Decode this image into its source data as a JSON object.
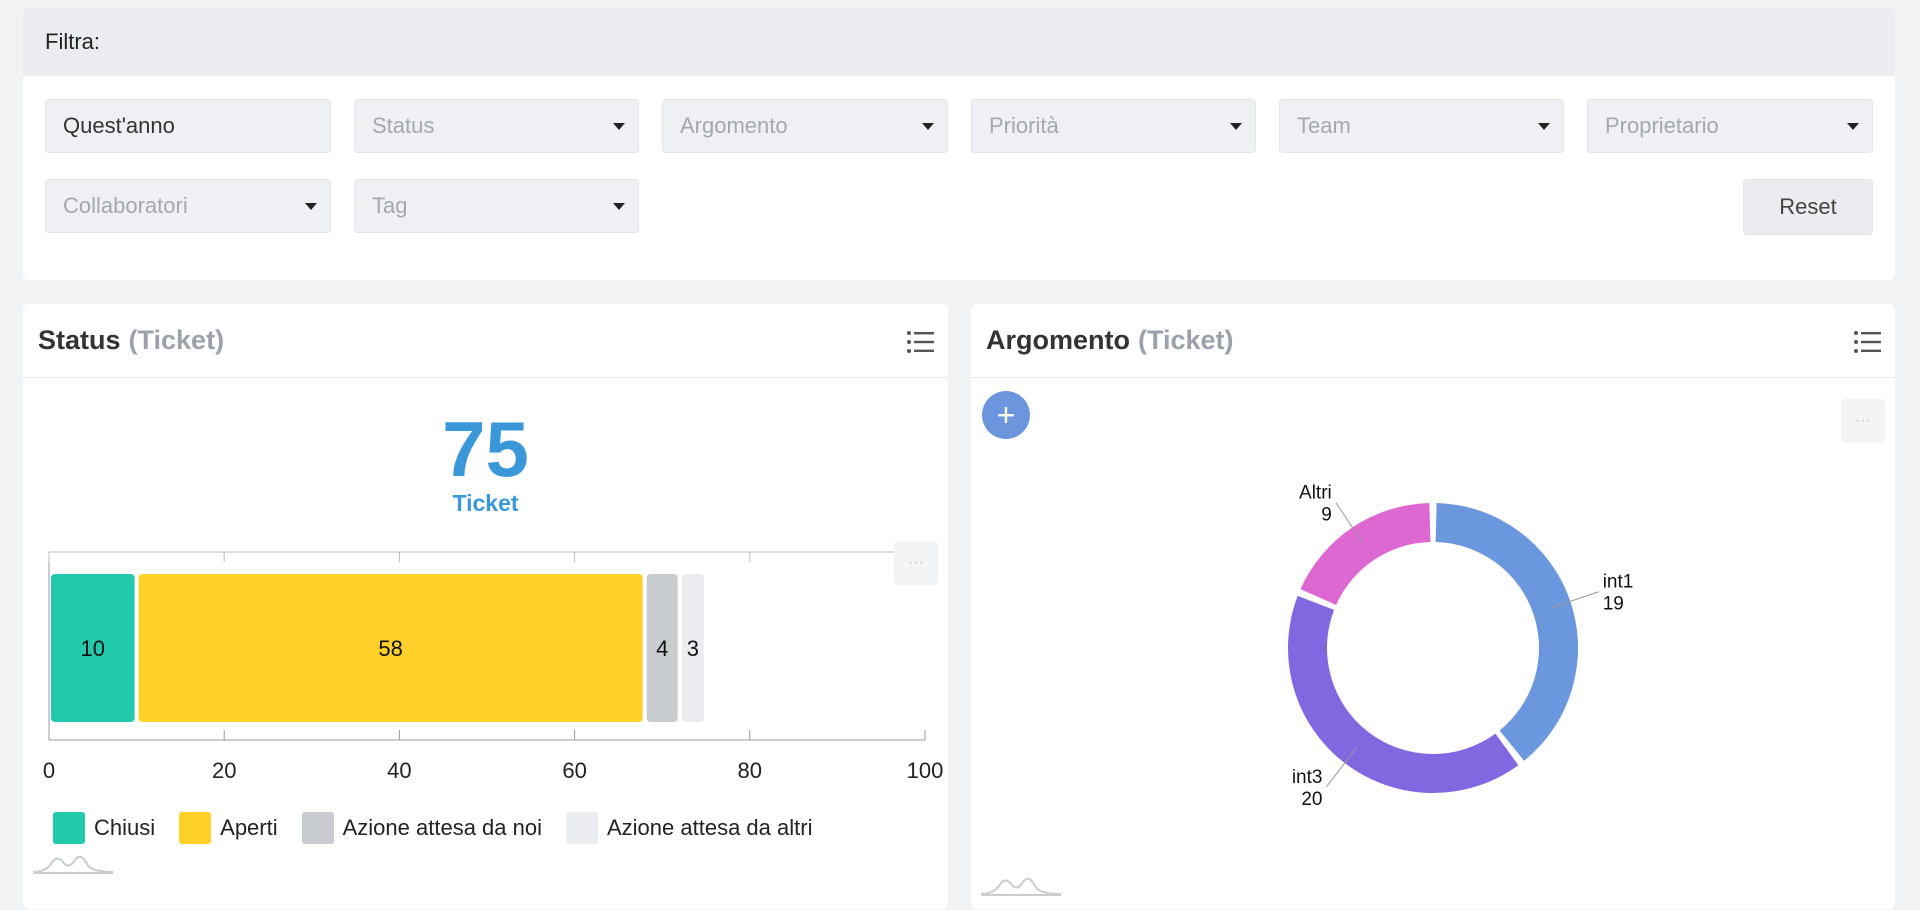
{
  "filters": {
    "header": "Filtra:",
    "period": "Quest'anno",
    "status": "Status",
    "argomento": "Argomento",
    "priorita": "Priorità",
    "team": "Team",
    "proprietario": "Proprietario",
    "collaboratori": "Collaboratori",
    "tag": "Tag",
    "reset": "Reset"
  },
  "status_panel": {
    "title": "Status",
    "subtitle": "(Ticket)",
    "total": "75",
    "total_label": "Ticket",
    "more": "···"
  },
  "argomento_panel": {
    "title": "Argomento",
    "subtitle": "(Ticket)",
    "add": "+",
    "more": "···"
  },
  "colors": {
    "chiusi": "#22c9ab",
    "aperti": "#fdd02a",
    "azione_noi": "#c8cbcf",
    "azione_altri": "#ebecef",
    "int1": "#6a97dd",
    "int3": "#8268e0",
    "altri": "#de68d2",
    "accent": "#3a98d9"
  },
  "chart_data": [
    {
      "type": "bar",
      "orientation": "horizontal",
      "stacked": true,
      "xlim": [
        0,
        100
      ],
      "ticks": [
        0,
        20,
        40,
        60,
        80,
        100
      ],
      "series": [
        {
          "name": "Chiusi",
          "value": 10,
          "color": "#22c9ab"
        },
        {
          "name": "Aperti",
          "value": 58,
          "color": "#fdd02a"
        },
        {
          "name": "Azione attesa da noi",
          "value": 4,
          "color": "#c8cbcf"
        },
        {
          "name": "Azione attesa da altri",
          "value": 3,
          "color": "#ebecef"
        }
      ],
      "legend": "bottom"
    },
    {
      "type": "pie",
      "donut": true,
      "slices": [
        {
          "label": "int1",
          "value": 19,
          "color": "#6a97dd"
        },
        {
          "label": "int3",
          "value": 20,
          "color": "#8268e0"
        },
        {
          "label": "Altri",
          "value": 9,
          "color": "#de68d2"
        }
      ]
    }
  ]
}
